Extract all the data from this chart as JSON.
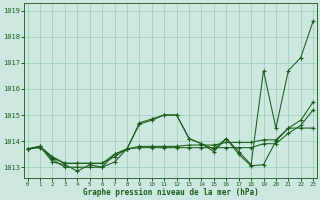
{
  "xlabel": "Graphe pression niveau de la mer (hPa)",
  "x_ticks": [
    0,
    1,
    2,
    3,
    4,
    5,
    6,
    7,
    8,
    9,
    10,
    11,
    12,
    13,
    14,
    15,
    16,
    17,
    18,
    19,
    20,
    21,
    22,
    23
  ],
  "ylim": [
    1012.6,
    1019.3
  ],
  "yticks": [
    1013,
    1014,
    1015,
    1016,
    1017,
    1018,
    1019
  ],
  "bg_color": "#cce8e0",
  "grid_color": "#99ccbb",
  "line_color": "#1a5c1a",
  "border_color": "#336633",
  "series": [
    [
      1013.7,
      1013.8,
      1013.3,
      1013.0,
      1013.0,
      1013.0,
      1013.0,
      1013.5,
      1013.7,
      1014.7,
      1014.85,
      1015.0,
      1015.0,
      1014.1,
      1013.9,
      1013.7,
      1014.1,
      1013.6,
      1013.1,
      1016.7,
      1014.5,
      1016.7,
      1017.2,
      1018.6
    ],
    [
      1013.7,
      1013.8,
      1013.2,
      1013.1,
      1012.85,
      1013.1,
      1013.0,
      1013.2,
      1013.7,
      1014.65,
      1014.8,
      1015.0,
      1015.0,
      1014.1,
      1013.9,
      1013.6,
      1014.1,
      1013.5,
      1013.05,
      1013.1,
      1014.0,
      1014.5,
      1014.5,
      1014.5
    ],
    [
      1013.7,
      1013.8,
      1013.4,
      1013.15,
      1013.15,
      1013.15,
      1013.15,
      1013.5,
      1013.7,
      1013.8,
      1013.8,
      1013.8,
      1013.8,
      1013.85,
      1013.85,
      1013.85,
      1013.95,
      1013.95,
      1013.95,
      1014.05,
      1014.05,
      1014.5,
      1014.8,
      1015.5
    ],
    [
      1013.7,
      1013.75,
      1013.35,
      1013.15,
      1013.15,
      1013.15,
      1013.15,
      1013.4,
      1013.7,
      1013.75,
      1013.75,
      1013.75,
      1013.75,
      1013.75,
      1013.75,
      1013.75,
      1013.75,
      1013.75,
      1013.75,
      1013.9,
      1013.9,
      1014.3,
      1014.6,
      1015.2
    ]
  ]
}
